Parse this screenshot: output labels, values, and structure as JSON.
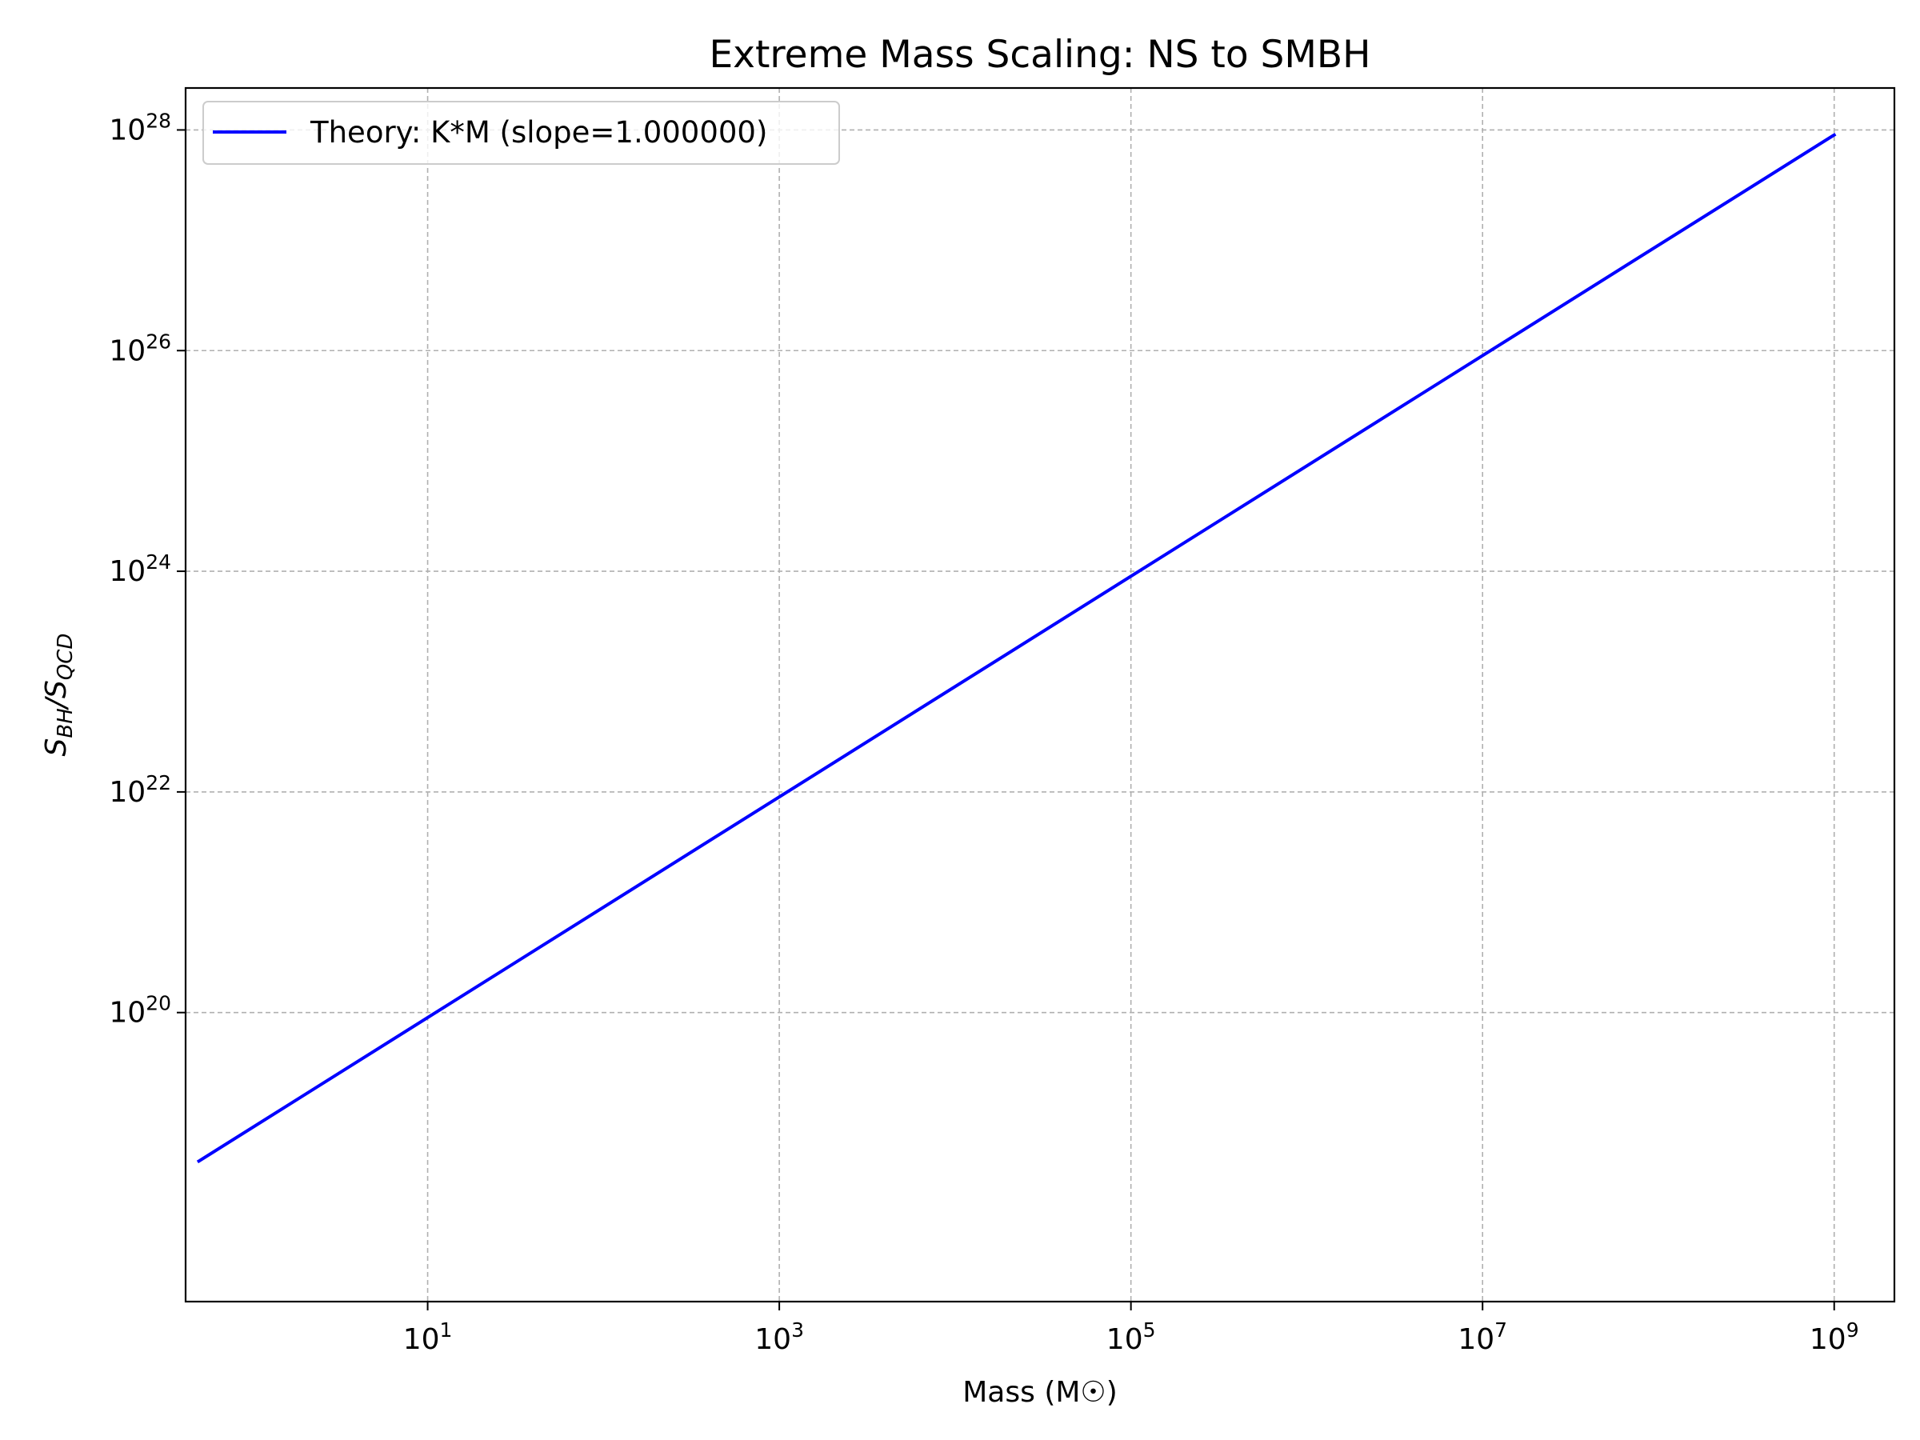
{
  "chart_data": {
    "type": "line",
    "title": "Extreme Mass Scaling: NS to SMBH",
    "xlabel": "Mass (M☉)",
    "ylabel": {
      "base": "S",
      "sub1": "BH",
      "sep": "/",
      "base2": "S",
      "sub2": "QCD"
    },
    "x_scale": "log",
    "y_scale": "log",
    "xlim": [
      0.42,
      2200000000.0
    ],
    "ylim": [
      2.4e+17,
      2.4e+28
    ],
    "x_ticks": [
      {
        "value": 10,
        "base": "10",
        "exp": "1"
      },
      {
        "value": 1000,
        "base": "10",
        "exp": "3"
      },
      {
        "value": 100000,
        "base": "10",
        "exp": "5"
      },
      {
        "value": 10000000,
        "base": "10",
        "exp": "7"
      },
      {
        "value": 1000000000,
        "base": "10",
        "exp": "9"
      }
    ],
    "y_ticks": [
      {
        "value": 1e+20,
        "base": "10",
        "exp": "20"
      },
      {
        "value": 1e+22,
        "base": "10",
        "exp": "22"
      },
      {
        "value": 1e+24,
        "base": "10",
        "exp": "24"
      },
      {
        "value": 1e+26,
        "base": "10",
        "exp": "26"
      },
      {
        "value": 1e+28,
        "base": "10",
        "exp": "28"
      }
    ],
    "grid": true,
    "legend_position": "top-left",
    "series": [
      {
        "name": "Theory: K*M (slope=1.000000)",
        "color": "#0000ff",
        "x": [
          0.5,
          1000000000
        ],
        "y": [
          4.5e+18,
          9e+27
        ]
      }
    ]
  }
}
